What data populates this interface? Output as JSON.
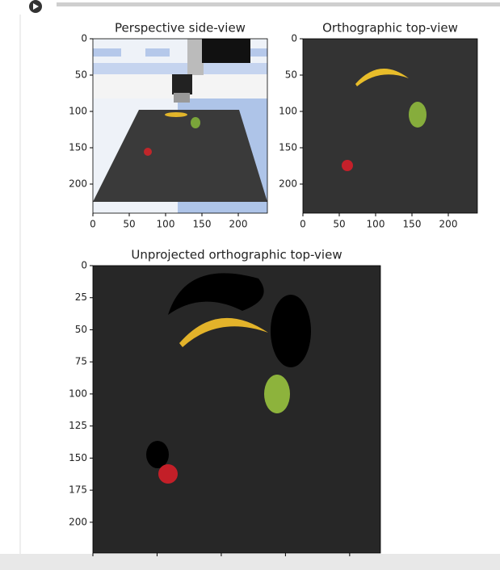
{
  "chart_data": [
    {
      "type": "image",
      "title": "Perspective side-view",
      "xlim": [
        0,
        240
      ],
      "ylim": [
        240,
        0
      ],
      "xticks": [
        0,
        50,
        100,
        150,
        200
      ],
      "yticks": [
        0,
        50,
        100,
        150,
        200
      ],
      "xtick_labels": true
    },
    {
      "type": "image",
      "title": "Orthographic top-view",
      "xlim": [
        0,
        240
      ],
      "ylim": [
        240,
        0
      ],
      "xticks": [
        0,
        50,
        100,
        150,
        200
      ],
      "yticks": [
        0,
        50,
        100,
        150,
        200
      ],
      "xtick_labels": true
    },
    {
      "type": "image",
      "title": "Unprojected orthographic top-view",
      "xlim": [
        0,
        224
      ],
      "ylim": [
        224,
        0
      ],
      "xticks": [
        0,
        50,
        100,
        150,
        200
      ],
      "yticks": [
        0,
        25,
        50,
        75,
        100,
        125,
        150,
        175,
        200
      ],
      "xtick_labels": false
    }
  ]
}
